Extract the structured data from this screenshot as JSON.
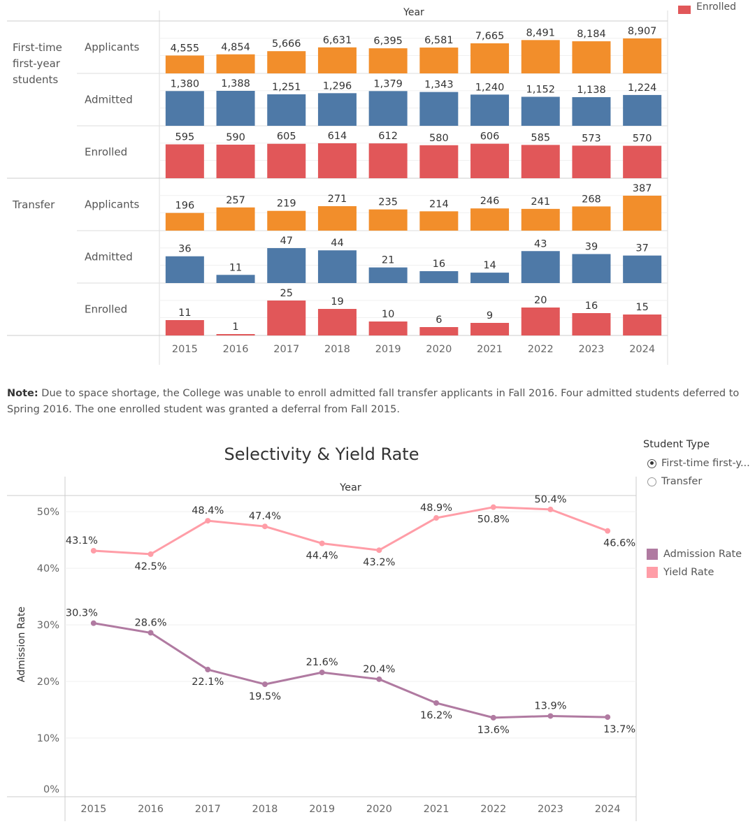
{
  "top_chart": {
    "column_header": "Year",
    "legend_item": "Enrolled",
    "groups": [
      {
        "label_lines": [
          "First-time",
          "first-year",
          "students"
        ]
      },
      {
        "label_lines": [
          "Transfer"
        ]
      }
    ]
  },
  "note": {
    "label": "Note:",
    "text": " Due to space shortage, the College was unable to enroll admitted fall transfer applicants in Fall 2016. Four admitted students deferred to Spring 2016. The one enrolled student was granted a deferral from Fall 2015."
  },
  "line_chart": {
    "title": "Selectivity & Yield Rate",
    "column_header": "Year"
  },
  "filter": {
    "title": "Student Type",
    "options": [
      {
        "label": "First-time first-y...",
        "selected": true
      },
      {
        "label": "Transfer",
        "selected": false
      }
    ]
  },
  "legend": [
    {
      "label": "Admission Rate",
      "color": "#b07aa1"
    },
    {
      "label": "Yield Rate",
      "color": "#ff9da7"
    }
  ],
  "chart_data": [
    {
      "type": "bar",
      "categories": [
        "2015",
        "2016",
        "2017",
        "2018",
        "2019",
        "2020",
        "2021",
        "2022",
        "2023",
        "2024"
      ],
      "series": [
        {
          "group": "First-time first-year students",
          "name": "Applicants",
          "color": "#f28e2b",
          "values": [
            4555,
            4854,
            5666,
            6631,
            6395,
            6581,
            7665,
            8491,
            8184,
            8907
          ],
          "labels": [
            "4,555",
            "4,854",
            "5,666",
            "6,631",
            "6,395",
            "6,581",
            "7,665",
            "8,491",
            "8,184",
            "8,907"
          ]
        },
        {
          "group": "First-time first-year students",
          "name": "Admitted",
          "color": "#4e79a7",
          "values": [
            1380,
            1388,
            1251,
            1296,
            1379,
            1343,
            1240,
            1152,
            1138,
            1224
          ],
          "labels": [
            "1,380",
            "1,388",
            "1,251",
            "1,296",
            "1,379",
            "1,343",
            "1,240",
            "1,152",
            "1,138",
            "1,224"
          ]
        },
        {
          "group": "First-time first-year students",
          "name": "Enrolled",
          "color": "#e15759",
          "values": [
            595,
            590,
            605,
            614,
            612,
            580,
            606,
            585,
            573,
            570
          ],
          "labels": [
            "595",
            "590",
            "605",
            "614",
            "612",
            "580",
            "606",
            "585",
            "573",
            "570"
          ]
        },
        {
          "group": "Transfer",
          "name": "Applicants",
          "color": "#f28e2b",
          "values": [
            196,
            257,
            219,
            271,
            235,
            214,
            246,
            241,
            268,
            387
          ],
          "labels": [
            "196",
            "257",
            "219",
            "271",
            "235",
            "214",
            "246",
            "241",
            "268",
            "387"
          ]
        },
        {
          "group": "Transfer",
          "name": "Admitted",
          "color": "#4e79a7",
          "values": [
            36,
            11,
            47,
            44,
            21,
            16,
            14,
            43,
            39,
            37
          ],
          "labels": [
            "36",
            "11",
            "47",
            "44",
            "21",
            "16",
            "14",
            "43",
            "39",
            "37"
          ]
        },
        {
          "group": "Transfer",
          "name": "Enrolled",
          "color": "#e15759",
          "values": [
            11,
            1,
            25,
            19,
            10,
            6,
            9,
            20,
            16,
            15
          ],
          "labels": [
            "11",
            "1",
            "25",
            "19",
            "10",
            "6",
            "9",
            "20",
            "16",
            "15"
          ]
        }
      ]
    },
    {
      "type": "line",
      "title": "Selectivity & Yield Rate",
      "xlabel": "Year",
      "ylabel": "Admission Rate",
      "x": [
        "2015",
        "2016",
        "2017",
        "2018",
        "2019",
        "2020",
        "2021",
        "2022",
        "2023",
        "2024"
      ],
      "ylim": [
        0,
        53
      ],
      "yticks": [
        0,
        10,
        20,
        30,
        40,
        50
      ],
      "ytick_labels": [
        "0%",
        "10%",
        "20%",
        "30%",
        "40%",
        "50%"
      ],
      "grid": true,
      "legend": "right",
      "series": [
        {
          "name": "Admission Rate",
          "color": "#b07aa1",
          "values": [
            30.3,
            28.6,
            22.1,
            19.5,
            21.6,
            20.4,
            16.2,
            13.6,
            13.9,
            13.7
          ],
          "labels": [
            "30.3%",
            "28.6%",
            "22.1%",
            "19.5%",
            "21.6%",
            "20.4%",
            "16.2%",
            "13.6%",
            "13.9%",
            "13.7%"
          ]
        },
        {
          "name": "Yield Rate",
          "color": "#ff9da7",
          "values": [
            43.1,
            42.5,
            48.4,
            47.4,
            44.4,
            43.2,
            48.9,
            50.8,
            50.4,
            46.6
          ],
          "labels": [
            "43.1%",
            "42.5%",
            "48.4%",
            "47.4%",
            "44.4%",
            "43.2%",
            "48.9%",
            "50.8%",
            "50.4%",
            "46.6%"
          ]
        }
      ]
    }
  ]
}
